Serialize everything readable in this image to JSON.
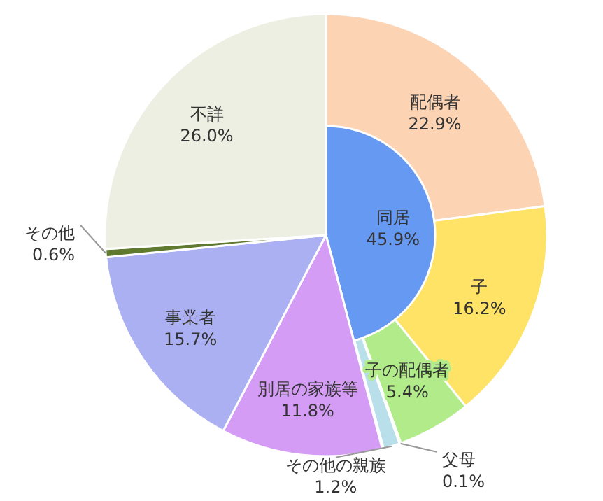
{
  "chart_data": [
    {
      "type": "pie",
      "categories": [
        "同居",
        "別居の家族等",
        "事業者",
        "その他",
        "不詳"
      ],
      "values": [
        45.9,
        11.8,
        15.7,
        0.6,
        26.0
      ],
      "value_labels": [
        "45.9%",
        "11.8%",
        "15.7%",
        "0.6%",
        "26.0%"
      ],
      "colors": [
        "#6699f2",
        "#d49cf4",
        "#aab0f2",
        "#5f7a2e",
        "#ecefe1"
      ]
    },
    {
      "type": "donut",
      "categories": [
        "配偶者",
        "子",
        "子の配偶者",
        "父母",
        "その他の親族"
      ],
      "values": [
        22.9,
        16.2,
        5.4,
        0.1,
        1.2
      ],
      "value_labels": [
        "22.9%",
        "16.2%",
        "5.4%",
        "0.1%",
        "1.2%"
      ],
      "colors": [
        "#fcd4b4",
        "#ffe366",
        "#b2ec8a",
        "#8a8a8a",
        "#b9dfea"
      ]
    }
  ]
}
